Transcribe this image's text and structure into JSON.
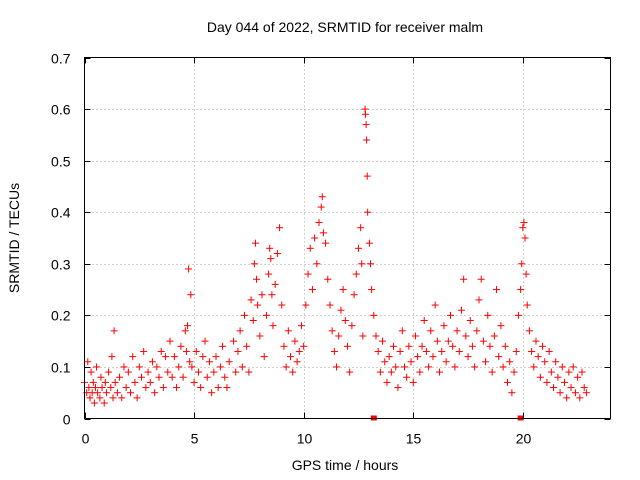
{
  "chart_data": {
    "type": "scatter",
    "title": "Day 044 of 2022, SRMTID for receiver malm",
    "xlabel": "GPS time / hours",
    "ylabel": "SRMTID / TECUs",
    "xlim": [
      0,
      24
    ],
    "ylim": [
      0,
      0.7
    ],
    "xticks": [
      0,
      5,
      10,
      15,
      20
    ],
    "yticks": [
      0,
      0.1,
      0.2,
      0.3,
      0.4,
      0.5,
      0.6,
      0.7
    ],
    "xtick_labels": [
      "0",
      "5",
      "10",
      "15",
      "20"
    ],
    "ytick_labels": [
      "0",
      "0.1",
      "0.2",
      "0.3",
      "0.4",
      "0.5",
      "0.6",
      "0.7"
    ],
    "grid": true,
    "marker": "+",
    "color": "#ff0000",
    "baseline_markers_x": [
      13.2,
      19.9
    ],
    "series": [
      {
        "name": "SRMTID",
        "points": [
          [
            0.0,
            0.07
          ],
          [
            0.1,
            0.05
          ],
          [
            0.15,
            0.11
          ],
          [
            0.2,
            0.06
          ],
          [
            0.25,
            0.04
          ],
          [
            0.3,
            0.09
          ],
          [
            0.35,
            0.05
          ],
          [
            0.4,
            0.07
          ],
          [
            0.45,
            0.03
          ],
          [
            0.5,
            0.06
          ],
          [
            0.55,
            0.1
          ],
          [
            0.6,
            0.05
          ],
          [
            0.7,
            0.04
          ],
          [
            0.75,
            0.08
          ],
          [
            0.8,
            0.06
          ],
          [
            0.9,
            0.03
          ],
          [
            0.95,
            0.07
          ],
          [
            1.0,
            0.05
          ],
          [
            1.1,
            0.09
          ],
          [
            1.2,
            0.06
          ],
          [
            1.25,
            0.12
          ],
          [
            1.3,
            0.04
          ],
          [
            1.35,
            0.17
          ],
          [
            1.4,
            0.07
          ],
          [
            1.5,
            0.05
          ],
          [
            1.6,
            0.08
          ],
          [
            1.7,
            0.04
          ],
          [
            1.8,
            0.1
          ],
          [
            1.9,
            0.06
          ],
          [
            2.0,
            0.09
          ],
          [
            2.1,
            0.05
          ],
          [
            2.2,
            0.12
          ],
          [
            2.3,
            0.07
          ],
          [
            2.4,
            0.04
          ],
          [
            2.5,
            0.1
          ],
          [
            2.6,
            0.08
          ],
          [
            2.7,
            0.13
          ],
          [
            2.8,
            0.06
          ],
          [
            2.9,
            0.09
          ],
          [
            3.0,
            0.07
          ],
          [
            3.1,
            0.11
          ],
          [
            3.2,
            0.05
          ],
          [
            3.3,
            0.1
          ],
          [
            3.4,
            0.08
          ],
          [
            3.5,
            0.13
          ],
          [
            3.6,
            0.06
          ],
          [
            3.7,
            0.12
          ],
          [
            3.8,
            0.09
          ],
          [
            3.9,
            0.15
          ],
          [
            4.0,
            0.08
          ],
          [
            4.1,
            0.12
          ],
          [
            4.2,
            0.06
          ],
          [
            4.3,
            0.1
          ],
          [
            4.4,
            0.14
          ],
          [
            4.5,
            0.08
          ],
          [
            4.6,
            0.17
          ],
          [
            4.65,
            0.13
          ],
          [
            4.7,
            0.18
          ],
          [
            4.75,
            0.29
          ],
          [
            4.8,
            0.11
          ],
          [
            4.85,
            0.24
          ],
          [
            4.9,
            0.1
          ],
          [
            5.0,
            0.07
          ],
          [
            5.1,
            0.13
          ],
          [
            5.2,
            0.09
          ],
          [
            5.3,
            0.06
          ],
          [
            5.4,
            0.12
          ],
          [
            5.5,
            0.15
          ],
          [
            5.6,
            0.08
          ],
          [
            5.7,
            0.11
          ],
          [
            5.8,
            0.05
          ],
          [
            5.9,
            0.09
          ],
          [
            6.0,
            0.12
          ],
          [
            6.1,
            0.06
          ],
          [
            6.2,
            0.1
          ],
          [
            6.3,
            0.14
          ],
          [
            6.4,
            0.08
          ],
          [
            6.5,
            0.06
          ],
          [
            6.6,
            0.11
          ],
          [
            6.8,
            0.15
          ],
          [
            6.9,
            0.09
          ],
          [
            7.0,
            0.13
          ],
          [
            7.1,
            0.17
          ],
          [
            7.2,
            0.1
          ],
          [
            7.3,
            0.2
          ],
          [
            7.4,
            0.14
          ],
          [
            7.5,
            0.09
          ],
          [
            7.6,
            0.23
          ],
          [
            7.7,
            0.19
          ],
          [
            7.75,
            0.3
          ],
          [
            7.8,
            0.34
          ],
          [
            7.85,
            0.27
          ],
          [
            7.9,
            0.22
          ],
          [
            8.0,
            0.16
          ],
          [
            8.1,
            0.24
          ],
          [
            8.2,
            0.12
          ],
          [
            8.3,
            0.2
          ],
          [
            8.4,
            0.28
          ],
          [
            8.45,
            0.33
          ],
          [
            8.5,
            0.31
          ],
          [
            8.55,
            0.24
          ],
          [
            8.6,
            0.18
          ],
          [
            8.7,
            0.26
          ],
          [
            8.8,
            0.32
          ],
          [
            8.9,
            0.37
          ],
          [
            9.0,
            0.22
          ],
          [
            9.1,
            0.14
          ],
          [
            9.2,
            0.1
          ],
          [
            9.3,
            0.17
          ],
          [
            9.4,
            0.12
          ],
          [
            9.5,
            0.09
          ],
          [
            9.6,
            0.15
          ],
          [
            9.7,
            0.11
          ],
          [
            9.8,
            0.13
          ],
          [
            9.9,
            0.18
          ],
          [
            10.0,
            0.14
          ],
          [
            10.1,
            0.22
          ],
          [
            10.2,
            0.28
          ],
          [
            10.3,
            0.33
          ],
          [
            10.4,
            0.25
          ],
          [
            10.5,
            0.35
          ],
          [
            10.6,
            0.3
          ],
          [
            10.7,
            0.38
          ],
          [
            10.8,
            0.41
          ],
          [
            10.85,
            0.43
          ],
          [
            10.9,
            0.36
          ],
          [
            11.0,
            0.34
          ],
          [
            11.1,
            0.27
          ],
          [
            11.2,
            0.22
          ],
          [
            11.3,
            0.17
          ],
          [
            11.4,
            0.13
          ],
          [
            11.5,
            0.1
          ],
          [
            11.6,
            0.16
          ],
          [
            11.7,
            0.21
          ],
          [
            11.8,
            0.25
          ],
          [
            11.9,
            0.19
          ],
          [
            12.0,
            0.14
          ],
          [
            12.1,
            0.09
          ],
          [
            12.2,
            0.18
          ],
          [
            12.3,
            0.24
          ],
          [
            12.4,
            0.28
          ],
          [
            12.5,
            0.33
          ],
          [
            12.6,
            0.37
          ],
          [
            12.65,
            0.3
          ],
          [
            12.7,
            0.16
          ],
          [
            12.8,
            0.6
          ],
          [
            12.82,
            0.59
          ],
          [
            12.85,
            0.57
          ],
          [
            12.87,
            0.54
          ],
          [
            12.9,
            0.47
          ],
          [
            12.92,
            0.4
          ],
          [
            13.0,
            0.34
          ],
          [
            13.05,
            0.3
          ],
          [
            13.1,
            0.25
          ],
          [
            13.2,
            0.2
          ],
          [
            13.3,
            0.16
          ],
          [
            13.4,
            0.13
          ],
          [
            13.5,
            0.09
          ],
          [
            13.6,
            0.15
          ],
          [
            13.7,
            0.11
          ],
          [
            13.8,
            0.07
          ],
          [
            13.9,
            0.12
          ],
          [
            14.0,
            0.09
          ],
          [
            14.1,
            0.14
          ],
          [
            14.2,
            0.1
          ],
          [
            14.3,
            0.06
          ],
          [
            14.4,
            0.13
          ],
          [
            14.5,
            0.17
          ],
          [
            14.6,
            0.1
          ],
          [
            14.7,
            0.08
          ],
          [
            14.8,
            0.14
          ],
          [
            14.9,
            0.11
          ],
          [
            15.0,
            0.07
          ],
          [
            15.1,
            0.16
          ],
          [
            15.2,
            0.12
          ],
          [
            15.3,
            0.09
          ],
          [
            15.4,
            0.14
          ],
          [
            15.5,
            0.19
          ],
          [
            15.6,
            0.13
          ],
          [
            15.7,
            0.1
          ],
          [
            15.8,
            0.17
          ],
          [
            15.9,
            0.12
          ],
          [
            16.0,
            0.22
          ],
          [
            16.1,
            0.15
          ],
          [
            16.2,
            0.09
          ],
          [
            16.3,
            0.13
          ],
          [
            16.4,
            0.18
          ],
          [
            16.5,
            0.11
          ],
          [
            16.6,
            0.15
          ],
          [
            16.7,
            0.2
          ],
          [
            16.8,
            0.14
          ],
          [
            16.9,
            0.1
          ],
          [
            17.0,
            0.17
          ],
          [
            17.1,
            0.13
          ],
          [
            17.2,
            0.21
          ],
          [
            17.3,
            0.27
          ],
          [
            17.4,
            0.16
          ],
          [
            17.5,
            0.12
          ],
          [
            17.6,
            0.19
          ],
          [
            17.7,
            0.14
          ],
          [
            17.8,
            0.1
          ],
          [
            17.9,
            0.17
          ],
          [
            18.0,
            0.23
          ],
          [
            18.1,
            0.27
          ],
          [
            18.2,
            0.15
          ],
          [
            18.3,
            0.11
          ],
          [
            18.4,
            0.2
          ],
          [
            18.5,
            0.14
          ],
          [
            18.6,
            0.09
          ],
          [
            18.7,
            0.16
          ],
          [
            18.8,
            0.25
          ],
          [
            18.9,
            0.12
          ],
          [
            19.0,
            0.18
          ],
          [
            19.1,
            0.1
          ],
          [
            19.2,
            0.14
          ],
          [
            19.3,
            0.07
          ],
          [
            19.4,
            0.11
          ],
          [
            19.5,
            0.05
          ],
          [
            19.6,
            0.09
          ],
          [
            19.7,
            0.13
          ],
          [
            19.8,
            0.2
          ],
          [
            19.9,
            0.25
          ],
          [
            19.95,
            0.3
          ],
          [
            20.0,
            0.37
          ],
          [
            20.05,
            0.38
          ],
          [
            20.1,
            0.35
          ],
          [
            20.15,
            0.28
          ],
          [
            20.2,
            0.22
          ],
          [
            20.3,
            0.17
          ],
          [
            20.4,
            0.13
          ],
          [
            20.5,
            0.1
          ],
          [
            20.6,
            0.15
          ],
          [
            20.7,
            0.12
          ],
          [
            20.8,
            0.08
          ],
          [
            20.9,
            0.14
          ],
          [
            21.0,
            0.11
          ],
          [
            21.1,
            0.07
          ],
          [
            21.2,
            0.13
          ],
          [
            21.3,
            0.09
          ],
          [
            21.4,
            0.06
          ],
          [
            21.5,
            0.11
          ],
          [
            21.6,
            0.08
          ],
          [
            21.7,
            0.05
          ],
          [
            21.8,
            0.1
          ],
          [
            21.9,
            0.07
          ],
          [
            22.0,
            0.04
          ],
          [
            22.1,
            0.09
          ],
          [
            22.2,
            0.06
          ],
          [
            22.3,
            0.1
          ],
          [
            22.4,
            0.05
          ],
          [
            22.5,
            0.08
          ],
          [
            22.6,
            0.04
          ],
          [
            22.7,
            0.09
          ],
          [
            22.8,
            0.06
          ],
          [
            22.9,
            0.05
          ]
        ]
      }
    ]
  }
}
